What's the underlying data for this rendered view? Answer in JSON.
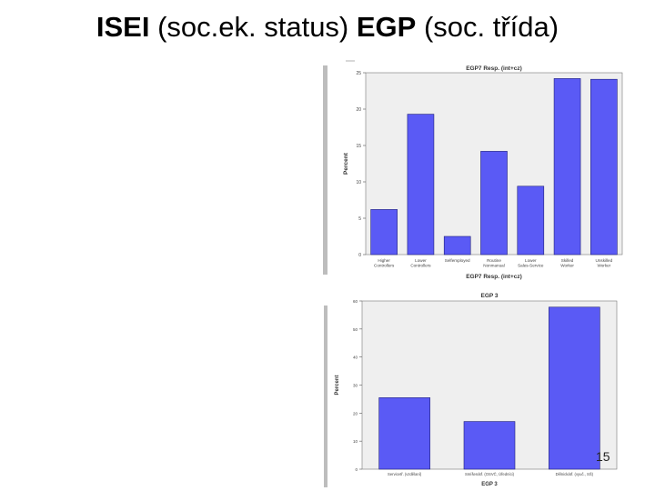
{
  "slide": {
    "title_part1": "ISEI",
    "title_part2": " (soc.ek. status) ",
    "title_part3": "EGP",
    "title_part4": " (soc. třída)",
    "page_number": "15"
  },
  "colors": {
    "bar": "#5a5af5",
    "bar_stroke": "#1f1f7a",
    "plot_bg": "#efefef"
  },
  "chart_data": [
    {
      "type": "bar",
      "title": "EGP7 Resp. (int+cz)",
      "xlabel": "EGP7 Resp. (int+cz)",
      "ylabel": "Percent",
      "categories": [
        "Higher Controllers",
        "Lower Controllers",
        "Selfemployed",
        "Routine Nonmanual",
        "Lower Sales-Service",
        "Skilled Worker",
        "Unskilled Worker"
      ],
      "values": [
        6.2,
        19.3,
        2.5,
        14.2,
        9.4,
        24.2,
        24.1
      ],
      "ylim": [
        0,
        25
      ],
      "yticks": [
        0,
        5,
        10,
        15,
        20,
        25
      ],
      "grid": false
    },
    {
      "type": "bar",
      "title": "EGP 3",
      "xlabel": "EGP 3",
      "ylabel": "Percent",
      "categories": [
        "Servicetř. (vzdělaní)",
        "Smíšenátř. (OSVČ, Úředníci)",
        "Dělnickátř. (vyuč., SŠ)"
      ],
      "values": [
        25.5,
        17.0,
        57.8
      ],
      "ylim": [
        0,
        60
      ],
      "yticks": [
        0,
        10,
        20,
        30,
        40,
        50,
        60
      ],
      "grid": false
    }
  ]
}
